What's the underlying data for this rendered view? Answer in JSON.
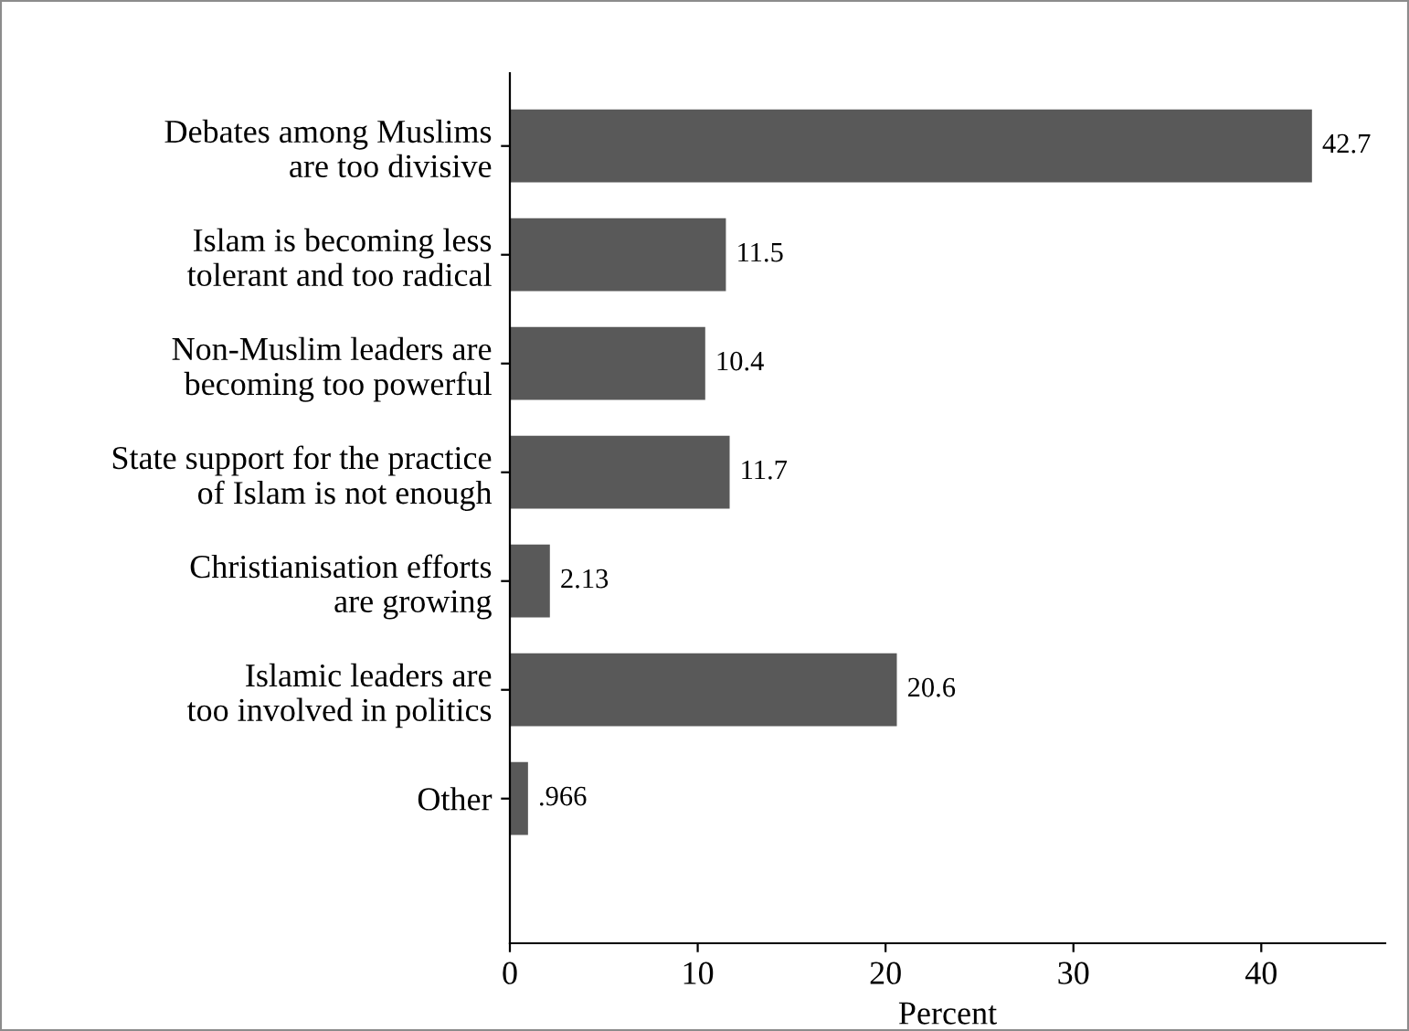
{
  "chart_data": {
    "type": "bar",
    "orientation": "horizontal",
    "categories": [
      "Debates among Muslims\nare too divisive",
      "Islam is becoming less\ntolerant and too radical",
      "Non-Muslim leaders are\nbecoming too powerful",
      "State support for the practice\nof Islam is not enough",
      "Christianisation efforts\nare growing",
      "Islamic leaders are\ntoo involved in politics",
      "Other"
    ],
    "values": [
      42.7,
      11.5,
      10.4,
      11.7,
      2.13,
      20.6,
      0.966
    ],
    "value_labels": [
      "42.7",
      "11.5",
      "10.4",
      "11.7",
      "2.13",
      "20.6",
      ".966"
    ],
    "color": "#595959",
    "xlabel": "Percent",
    "xlim": [
      0,
      46.6
    ],
    "xticks": [
      0,
      10,
      20,
      30,
      40
    ],
    "grid": false,
    "legend": false
  }
}
